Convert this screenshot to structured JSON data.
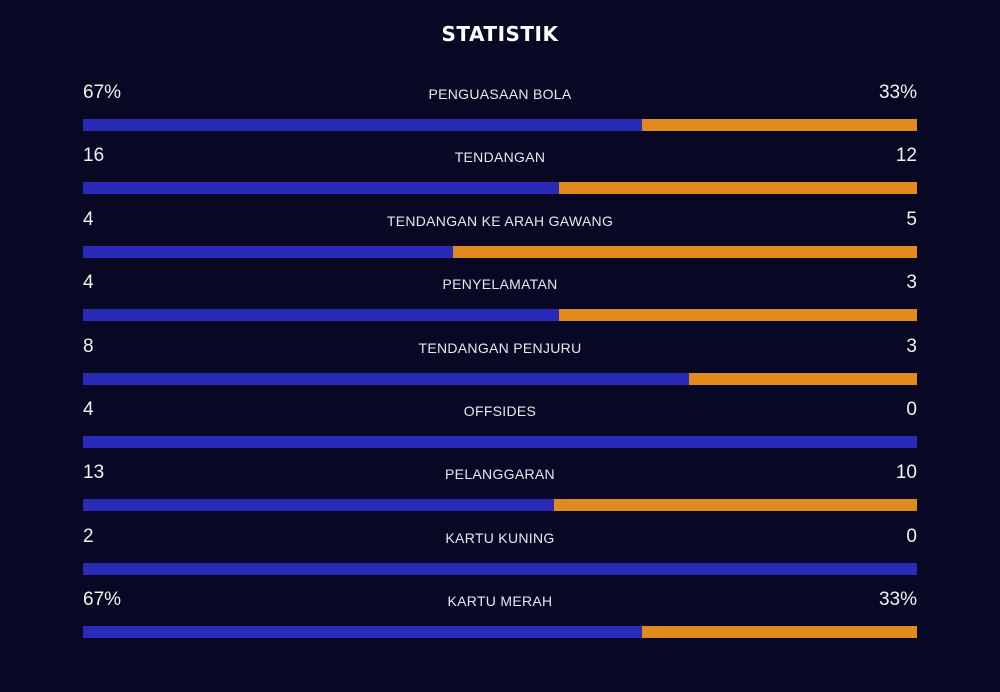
{
  "title": "STATISTIK",
  "colors": {
    "background": "#080824",
    "home": "#2a2ab8",
    "away": "#e08a1e"
  },
  "stats": [
    {
      "label": "PENGUASAAN BOLA",
      "home": "67%",
      "away": "33%",
      "home_share": 0.67
    },
    {
      "label": "TENDANGAN",
      "home": "16",
      "away": "12",
      "home_share": 0.571
    },
    {
      "label": "TENDANGAN KE ARAH GAWANG",
      "home": "4",
      "away": "5",
      "home_share": 0.444
    },
    {
      "label": "PENYELAMATAN",
      "home": "4",
      "away": "3",
      "home_share": 0.571
    },
    {
      "label": "TENDANGAN PENJURU",
      "home": "8",
      "away": "3",
      "home_share": 0.727
    },
    {
      "label": "OFFSIDES",
      "home": "4",
      "away": "0",
      "home_share": 1.0
    },
    {
      "label": "PELANGGARAN",
      "home": "13",
      "away": "10",
      "home_share": 0.565
    },
    {
      "label": "KARTU KUNING",
      "home": "2",
      "away": "0",
      "home_share": 1.0
    },
    {
      "label": "KARTU MERAH",
      "home": "67%",
      "away": "33%",
      "home_share": 0.67
    }
  ]
}
